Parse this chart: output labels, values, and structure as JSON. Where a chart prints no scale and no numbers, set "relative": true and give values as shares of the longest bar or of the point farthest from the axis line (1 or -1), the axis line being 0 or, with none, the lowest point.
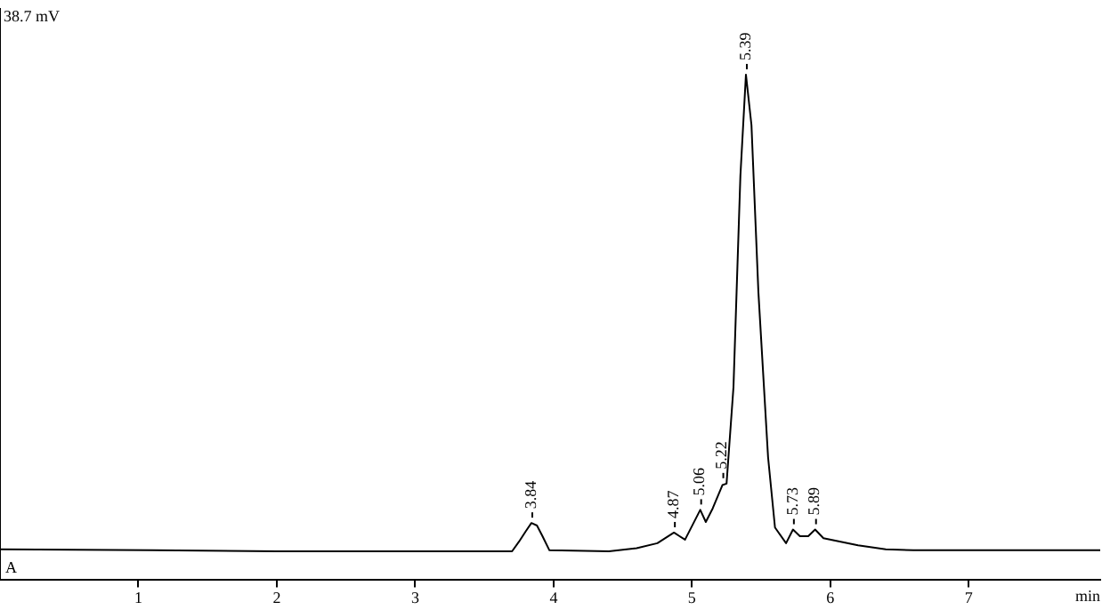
{
  "chart_data": {
    "type": "line",
    "relative": true,
    "xlabel": "min",
    "x": [
      0,
      1.1,
      2.0,
      3.0,
      3.7,
      3.75,
      3.8,
      3.84,
      3.88,
      3.92,
      3.97,
      4.4,
      4.6,
      4.75,
      4.87,
      4.95,
      5.06,
      5.1,
      5.15,
      5.22,
      5.25,
      5.3,
      5.35,
      5.39,
      5.43,
      5.48,
      5.55,
      5.6,
      5.68,
      5.73,
      5.78,
      5.84,
      5.89,
      5.95,
      6.2,
      6.4,
      6.6,
      7.95
    ],
    "series": [
      {
        "color": "#000000",
        "values": [
          0.061,
          0.059,
          0.057,
          0.057,
          0.057,
          0.076,
          0.097,
          0.113,
          0.108,
          0.087,
          0.059,
          0.057,
          0.063,
          0.073,
          0.094,
          0.08,
          0.139,
          0.115,
          0.142,
          0.188,
          0.191,
          0.382,
          0.8,
          1.0,
          0.9,
          0.57,
          0.243,
          0.104,
          0.073,
          0.1,
          0.087,
          0.087,
          0.1,
          0.083,
          0.069,
          0.061,
          0.059,
          0.059
        ]
      }
    ],
    "xlim": [
      0,
      7.95
    ],
    "xticks": [
      1,
      2,
      3,
      4,
      5,
      6,
      7
    ],
    "grid": false,
    "legend": false,
    "marker": "none",
    "line_style": "solid",
    "annotations": [
      "38.7 mV",
      "A",
      {
        "text": "3.84",
        "x": 3.84,
        "y": 0.113
      },
      {
        "text": "4.87",
        "x": 4.87,
        "y": 0.094
      },
      {
        "text": "5.06",
        "x": 5.06,
        "y": 0.139
      },
      {
        "text": "5.22",
        "x": 5.22,
        "y": 0.191
      },
      {
        "text": "5.39",
        "x": 5.39,
        "y": 1.0
      },
      {
        "text": "5.73",
        "x": 5.73,
        "y": 0.1
      },
      {
        "text": "5.89",
        "x": 5.89,
        "y": 0.1
      }
    ]
  }
}
